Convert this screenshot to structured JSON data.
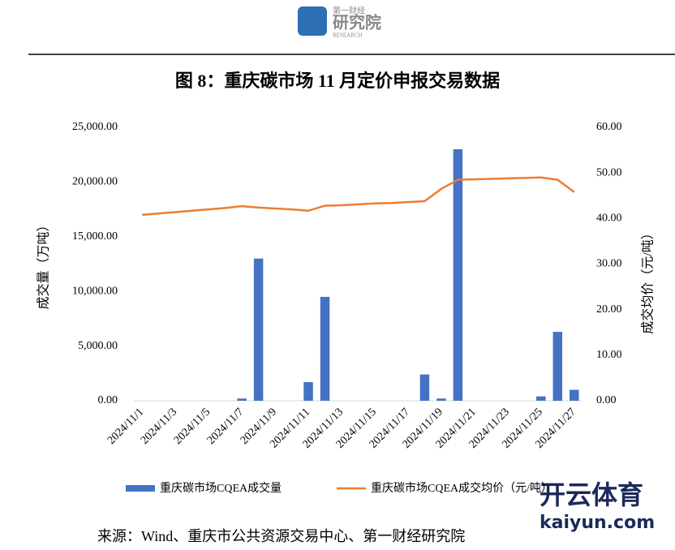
{
  "header": {
    "logo_top": "第一财经",
    "logo_main": "研究院",
    "logo_sub": "RESEARCH"
  },
  "chart_data": {
    "type": "bar-line",
    "title": "图 8：重庆碳市场 11 月定价申报交易数据",
    "y_label": "成交量（万吨）",
    "y2_label": "成交均价（元/吨）",
    "categories": [
      "2024/11/1",
      null,
      "2024/11/3",
      null,
      "2024/11/5",
      null,
      "2024/11/7",
      null,
      "2024/11/9",
      null,
      "2024/11/11",
      null,
      "2024/11/13",
      null,
      "2024/11/15",
      null,
      "2024/11/17",
      null,
      "2024/11/19",
      null,
      "2024/11/21",
      null,
      "2024/11/23",
      null,
      "2024/11/25",
      null,
      "2024/11/27"
    ],
    "series": [
      {
        "name": "重庆碳市场CQEA成交量",
        "type": "bar",
        "color": "#4472c4",
        "values": [
          0,
          0,
          0,
          0,
          0,
          0,
          200,
          13000,
          0,
          0,
          1700,
          9500,
          0,
          0,
          0,
          0,
          0,
          2400,
          200,
          23000,
          0,
          0,
          0,
          0,
          400,
          6300,
          1000
        ]
      },
      {
        "name": "重庆碳市场CQEA成交均价（元/吨）",
        "type": "line",
        "axis": "y2",
        "color": "#ed7d31",
        "values": [
          40.8,
          41.1,
          41.4,
          41.7,
          42.0,
          42.3,
          42.7,
          42.4,
          42.2,
          42.0,
          41.7,
          42.8,
          42.9,
          43.1,
          43.3,
          43.4,
          43.6,
          43.8,
          46.5,
          48.5,
          48.6,
          48.7,
          48.8,
          48.9,
          49.0,
          48.5,
          45.8
        ]
      }
    ],
    "ylim": [
      0,
      25000
    ],
    "yticks": [
      {
        "value": 0,
        "label": "0.00"
      },
      {
        "value": 5000,
        "label": "5,000.00"
      },
      {
        "value": 10000,
        "label": "10,000.00"
      },
      {
        "value": 15000,
        "label": "15,000.00"
      },
      {
        "value": 20000,
        "label": "20,000.00"
      },
      {
        "value": 25000,
        "label": "25,000.00"
      }
    ],
    "y2lim": [
      0,
      60
    ],
    "y2ticks": [
      {
        "value": 0,
        "label": "0.00"
      },
      {
        "value": 10,
        "label": "10.00"
      },
      {
        "value": 20,
        "label": "20.00"
      },
      {
        "value": 30,
        "label": "30.00"
      },
      {
        "value": 40,
        "label": "40.00"
      },
      {
        "value": 50,
        "label": "50.00"
      },
      {
        "value": 60,
        "label": "60.00"
      }
    ],
    "source": "来源：Wind、重庆市公共资源交易中心、第一财经研究院"
  },
  "watermark": {
    "main": "开云体育",
    "sub": "kaiyun.com"
  }
}
